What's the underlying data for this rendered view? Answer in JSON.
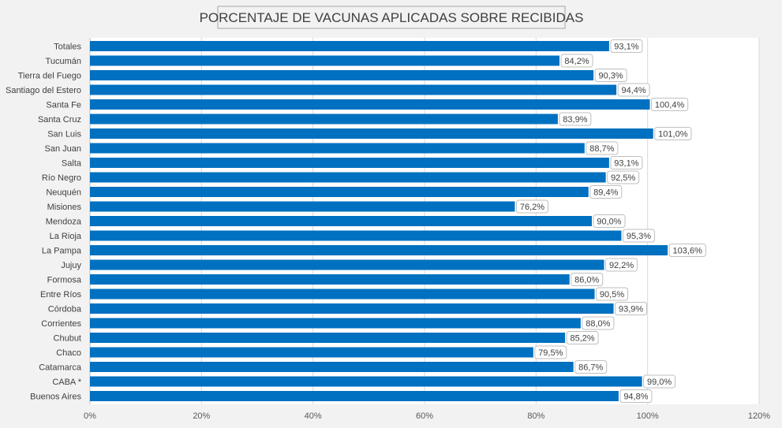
{
  "chart_data": {
    "type": "bar",
    "orientation": "horizontal",
    "title": "PORCENTAJE DE VACUNAS APLICADAS SOBRE RECIBIDAS",
    "xlabel": "",
    "ylabel": "",
    "xlim": [
      0,
      120
    ],
    "grid": true,
    "legend": "none",
    "bar_color": "#0070c0",
    "ticks": [
      "0%",
      "20%",
      "40%",
      "60%",
      "80%",
      "100%",
      "120%"
    ],
    "tick_values": [
      0,
      20,
      40,
      60,
      80,
      100,
      120
    ],
    "categories": [
      "Totales",
      "Tucumán",
      "Tierra del Fuego",
      "Santiago del Estero",
      "Santa Fe",
      "Santa Cruz",
      "San Luis",
      "San Juan",
      "Salta",
      "Río Negro",
      "Neuquén",
      "Misiones",
      "Mendoza",
      "La Rioja",
      "La Pampa",
      "Jujuy",
      "Formosa",
      "Entre Ríos",
      "Córdoba",
      "Corrientes",
      "Chubut",
      "Chaco",
      "Catamarca",
      "CABA *",
      "Buenos Aires"
    ],
    "values": [
      93.1,
      84.2,
      90.3,
      94.4,
      100.4,
      83.9,
      101.0,
      88.7,
      93.1,
      92.5,
      89.4,
      76.2,
      90.0,
      95.3,
      103.6,
      92.2,
      86.0,
      90.5,
      93.9,
      88.0,
      85.2,
      79.5,
      86.7,
      99.0,
      94.8
    ],
    "value_labels": [
      "93,1%",
      "84,2%",
      "90,3%",
      "94,4%",
      "100,4%",
      "83,9%",
      "101,0%",
      "88,7%",
      "93,1%",
      "92,5%",
      "89,4%",
      "76,2%",
      "90,0%",
      "95,3%",
      "103,6%",
      "92,2%",
      "86,0%",
      "90,5%",
      "93,9%",
      "88,0%",
      "85,2%",
      "79,5%",
      "86,7%",
      "99,0%",
      "94,8%"
    ]
  }
}
